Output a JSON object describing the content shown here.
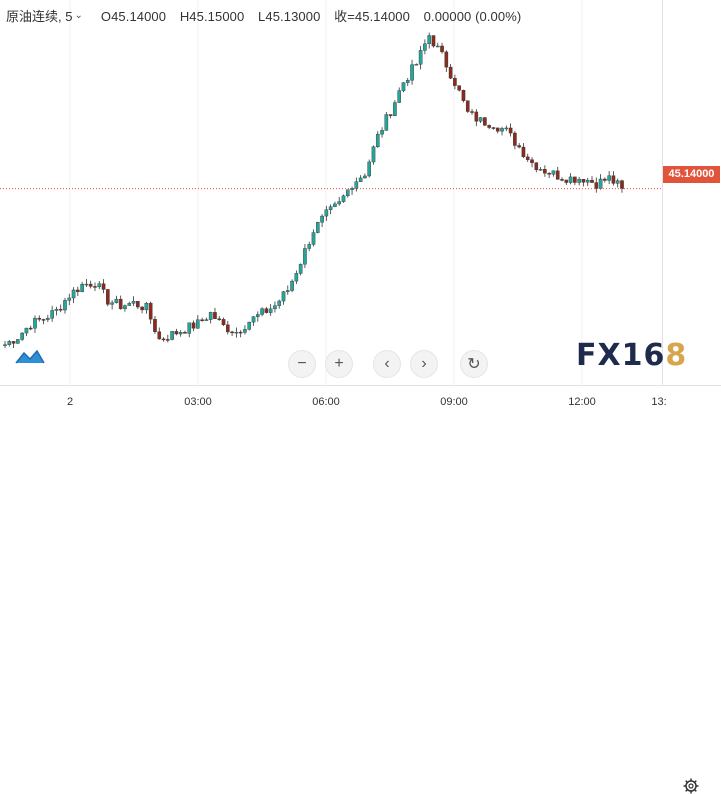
{
  "legend": {
    "symbol": "原油连续, 5",
    "open": "O45.14000",
    "high": "H45.15000",
    "low": "L45.13000",
    "close": "收=45.14000",
    "change": "0.00000 (0.00%)"
  },
  "last_price_label": "45.14000",
  "time_axis": {
    "labels": [
      "2",
      "03:00",
      "06:00",
      "09:00",
      "12:00",
      "13:"
    ]
  },
  "controls": {
    "zoom_out": "−",
    "zoom_in": "+",
    "scroll_left": "‹",
    "scroll_right": "›",
    "reset": "↻"
  },
  "watermark": {
    "part1": "FX16",
    "part2": "8"
  },
  "colors": {
    "up": "#26a69a",
    "down": "#8b2a1e",
    "last_price": "#e2533b",
    "grid": "#f0f0f0"
  },
  "icons": {
    "logo": "tradingview-logo-icon",
    "settings": "gear-icon"
  },
  "chart_data": {
    "type": "candlestick",
    "interval": "5",
    "x": [
      "00:45",
      "01:00",
      "01:15",
      "01:30",
      "01:45",
      "02:00",
      "02:15",
      "02:30",
      "02:45",
      "03:00",
      "03:15",
      "03:30",
      "03:45",
      "04:00",
      "04:15",
      "04:30",
      "04:45",
      "05:00",
      "05:15",
      "05:30",
      "05:45",
      "06:00",
      "06:15",
      "06:30",
      "06:45",
      "07:00",
      "07:15",
      "07:30",
      "07:45",
      "08:00",
      "08:15",
      "08:30",
      "08:45",
      "09:00",
      "09:15",
      "09:30",
      "09:45",
      "10:00",
      "10:15",
      "10:30",
      "10:45",
      "11:00",
      "11:15",
      "11:30",
      "11:45",
      "12:00",
      "12:15",
      "12:30",
      "12:40"
    ],
    "close": [
      44.54,
      44.57,
      44.62,
      44.64,
      44.67,
      44.73,
      44.77,
      44.78,
      44.71,
      44.69,
      44.7,
      44.68,
      44.56,
      44.58,
      44.6,
      44.62,
      44.66,
      44.61,
      44.59,
      44.63,
      44.66,
      44.69,
      44.75,
      44.86,
      44.98,
      45.04,
      45.08,
      45.16,
      45.2,
      45.34,
      45.44,
      45.55,
      45.62,
      45.73,
      45.65,
      45.55,
      45.43,
      45.4,
      45.39,
      45.36,
      45.3,
      45.24,
      45.21,
      45.19,
      45.18,
      45.18,
      45.16,
      45.18,
      45.14
    ],
    "price_range": [
      44.5,
      45.75
    ],
    "last_price": 45.14
  }
}
